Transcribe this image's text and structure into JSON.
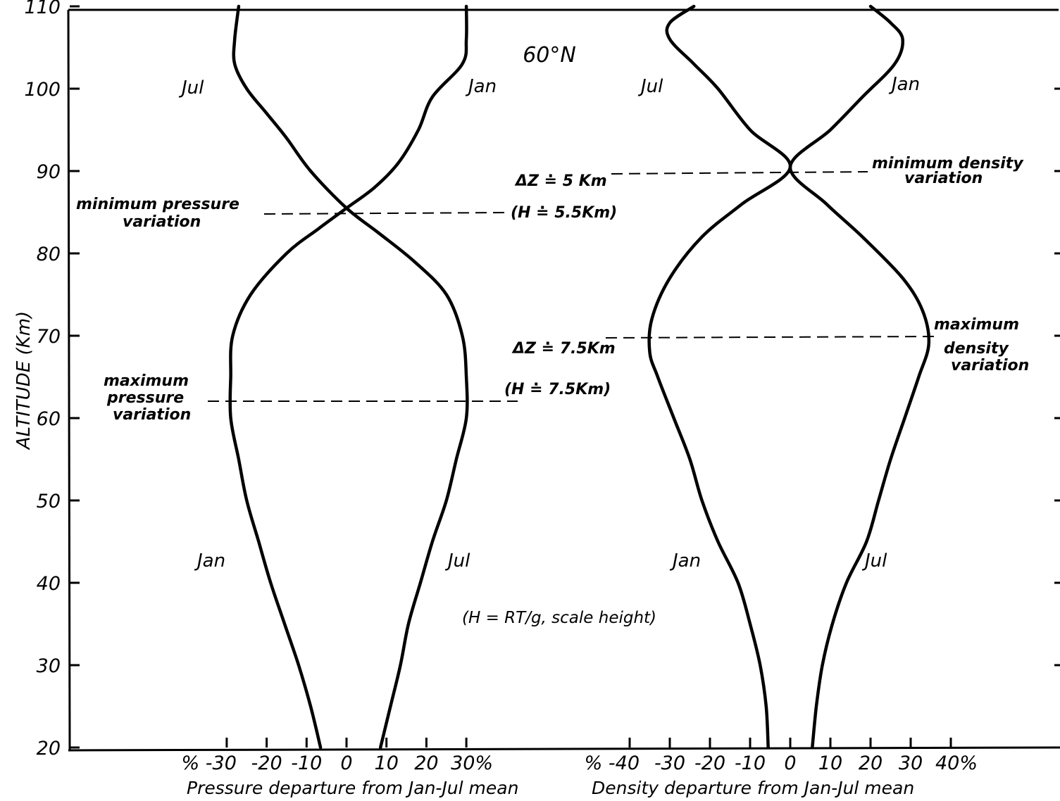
{
  "chart_data": {
    "type": "line",
    "header": "60°N",
    "y_axis": {
      "label": "ALTITUDE (Km)",
      "ticks": [
        "110",
        "100",
        "90",
        "80",
        "70",
        "60",
        "50",
        "40",
        "30",
        "20"
      ],
      "range": [
        20,
        110
      ]
    },
    "panels": [
      {
        "id": "pressure",
        "xlabel": "Pressure departure from Jan-Jul mean",
        "xlim": [
          -30,
          30
        ],
        "ticks": [
          {
            "value": -30,
            "label": "% -30"
          },
          {
            "value": -20,
            "label": "-20"
          },
          {
            "value": -10,
            "label": "-10"
          },
          {
            "value": 0,
            "label": "0"
          },
          {
            "value": 10,
            "label": "10"
          },
          {
            "value": 20,
            "label": "20"
          },
          {
            "value": 30,
            "label": "30%"
          }
        ],
        "series": [
          {
            "top_label": "Jul",
            "bottom_label": "Jan",
            "points": [
              [
                -6.5,
                20
              ],
              [
                -9,
                25
              ],
              [
                -12,
                30
              ],
              [
                -15.5,
                35
              ],
              [
                -19,
                40
              ],
              [
                -22,
                45
              ],
              [
                -25,
                50
              ],
              [
                -27,
                55
              ],
              [
                -29,
                60
              ],
              [
                -29,
                65
              ],
              [
                -28.5,
                70
              ],
              [
                -24,
                75
              ],
              [
                -15,
                80
              ],
              [
                -7,
                83
              ],
              [
                0,
                85.5
              ],
              [
                7,
                88
              ],
              [
                13,
                91
              ],
              [
                18,
                95
              ],
              [
                21.5,
                99
              ],
              [
                29,
                103
              ],
              [
                30,
                106
              ],
              [
                30,
                110
              ]
            ]
          },
          {
            "top_label": "Jan",
            "bottom_label": "Jul",
            "points": [
              [
                8.5,
                20
              ],
              [
                11,
                25
              ],
              [
                13.5,
                30
              ],
              [
                15.5,
                35
              ],
              [
                18.5,
                40
              ],
              [
                21.5,
                45
              ],
              [
                25,
                50
              ],
              [
                27.5,
                55
              ],
              [
                30,
                60
              ],
              [
                30,
                65
              ],
              [
                29,
                70
              ],
              [
                25,
                75
              ],
              [
                17,
                79
              ],
              [
                8,
                82.5
              ],
              [
                0,
                85.5
              ],
              [
                -9,
                90
              ],
              [
                -15,
                94
              ],
              [
                -20,
                97
              ],
              [
                -25,
                100
              ],
              [
                -28,
                103
              ],
              [
                -28,
                106
              ],
              [
                -27,
                110
              ]
            ]
          }
        ]
      },
      {
        "id": "density",
        "xlabel": "Density departure from Jan-Jul mean",
        "xlim": [
          -40,
          40
        ],
        "ticks": [
          {
            "value": -40,
            "label": "% -40"
          },
          {
            "value": -30,
            "label": "-30"
          },
          {
            "value": -20,
            "label": "-20"
          },
          {
            "value": -10,
            "label": "-10"
          },
          {
            "value": 0,
            "label": "0"
          },
          {
            "value": 10,
            "label": "10"
          },
          {
            "value": 20,
            "label": "20"
          },
          {
            "value": 30,
            "label": "30"
          },
          {
            "value": 40,
            "label": "40%"
          }
        ],
        "series": [
          {
            "top_label": "Jul",
            "bottom_label": "Jan",
            "points": [
              [
                -5.5,
                20
              ],
              [
                -6,
                25
              ],
              [
                -7.5,
                30
              ],
              [
                -10,
                35
              ],
              [
                -13,
                40
              ],
              [
                -18,
                45
              ],
              [
                -22,
                50
              ],
              [
                -25,
                55
              ],
              [
                -29,
                60
              ],
              [
                -33,
                65
              ],
              [
                -35,
                68
              ],
              [
                -34.5,
                72
              ],
              [
                -30,
                77
              ],
              [
                -22,
                82
              ],
              [
                -12,
                86
              ],
              [
                0,
                90.5
              ],
              [
                -10,
                95
              ],
              [
                -18,
                100
              ],
              [
                -24,
                103
              ],
              [
                -30,
                106
              ],
              [
                -30,
                108
              ],
              [
                -24,
                110
              ]
            ]
          },
          {
            "top_label": "Jan",
            "bottom_label": "Jul",
            "points": [
              [
                5.5,
                20
              ],
              [
                6.5,
                25
              ],
              [
                8,
                30
              ],
              [
                10.5,
                35
              ],
              [
                14,
                40
              ],
              [
                19,
                45
              ],
              [
                22,
                50
              ],
              [
                25,
                55
              ],
              [
                28.5,
                60
              ],
              [
                32,
                65
              ],
              [
                34.5,
                69
              ],
              [
                33,
                73
              ],
              [
                28,
                77
              ],
              [
                18,
                82
              ],
              [
                9,
                86
              ],
              [
                0,
                90.5
              ],
              [
                10,
                95
              ],
              [
                18,
                99
              ],
              [
                26,
                103
              ],
              [
                28,
                106
              ],
              [
                25,
                108
              ],
              [
                20,
                110
              ]
            ]
          }
        ]
      }
    ],
    "annotations": [
      {
        "text": "minimum pressure",
        "altitude": 85.3
      },
      {
        "text": "variation",
        "altitude": 85.3
      },
      {
        "text": "(H ≐ 5.5Km)",
        "altitude": 85.3
      },
      {
        "text": "maximum",
        "altitude": 62.5
      },
      {
        "text": "pressure",
        "altitude": 62.5
      },
      {
        "text": "variation",
        "altitude": 62.5
      },
      {
        "text": "(H ≐ 7.5Km)",
        "altitude": 62.5
      },
      {
        "text": "ΔZ ≐ 5 Km",
        "altitude": 90.3
      },
      {
        "text": "minimum density",
        "altitude": 90.3
      },
      {
        "text": "variation",
        "altitude": 90.3
      },
      {
        "text": "ΔZ ≐ 7.5Km",
        "altitude": 70.4
      },
      {
        "text": "maximum",
        "altitude": 70.4
      },
      {
        "text": "density",
        "altitude": 70.4
      },
      {
        "text": "variation",
        "altitude": 70.4
      },
      {
        "text": "(H = RT/g, scale height)"
      }
    ]
  }
}
